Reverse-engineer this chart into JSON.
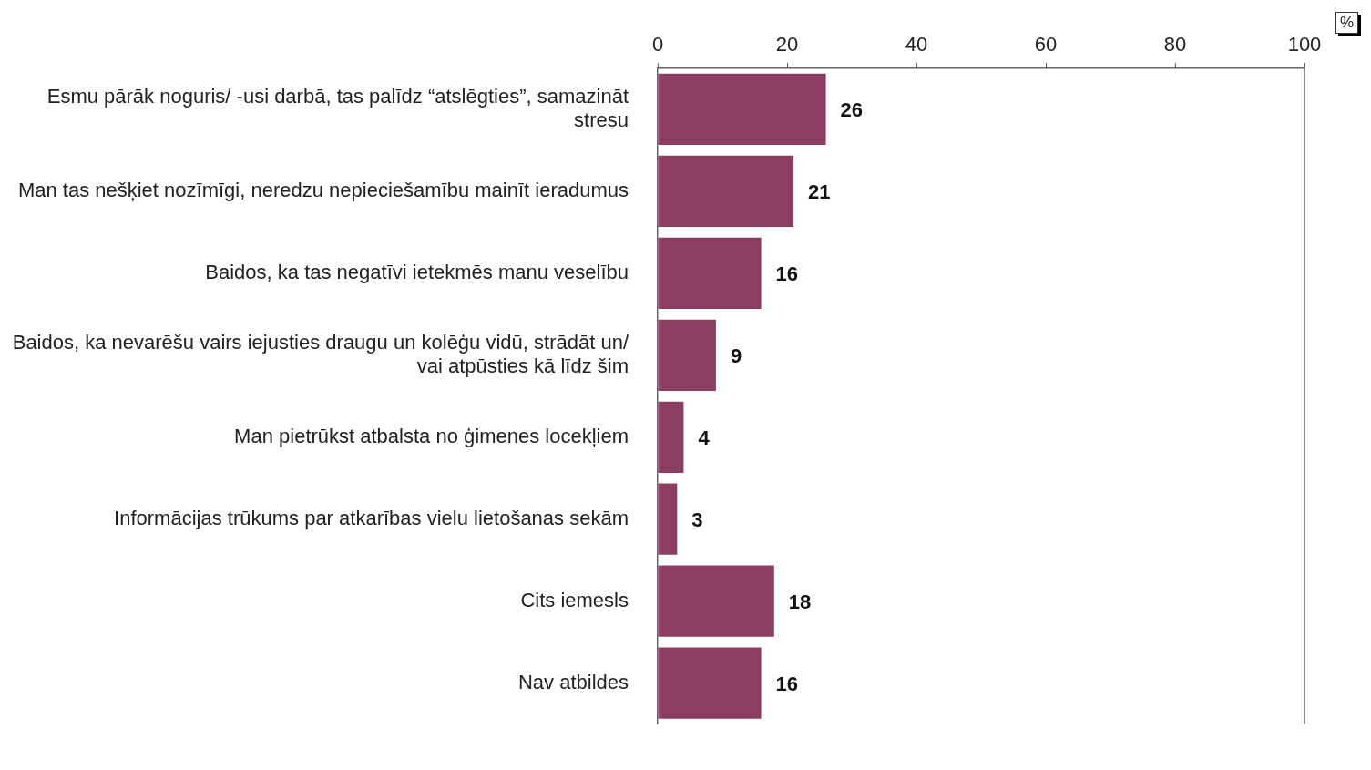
{
  "chart_data": {
    "type": "bar",
    "orientation": "horizontal",
    "xlabel": "%",
    "categories": [
      "Esmu pārāk noguris/ -usi darbā, tas palīdz “atslēgties”, samazināt stresu",
      "Man tas nešķiet nozīmīgi, neredzu nepieciešamību mainīt ieradumus",
      "Baidos, ka tas negatīvi ietekmēs manu veselību",
      "Baidos, ka nevarēšu vairs iejusties draugu un kolēģu vidū, strādāt un/ vai atpūsties kā līdz šim",
      "Man pietrūkst atbalsta no ģimenes locekļiem",
      "Informācijas trūkums par atkarības vielu lietošanas sekām",
      "Cits iemesls",
      "Nav atbildes"
    ],
    "values": [
      26,
      21,
      16,
      9,
      4,
      3,
      18,
      16
    ],
    "color": "#8b3d62",
    "xlim": [
      0,
      100
    ],
    "xticks": [
      0,
      20,
      40,
      60,
      80,
      100
    ],
    "grid": false,
    "legend": false,
    "data_labels": true
  }
}
